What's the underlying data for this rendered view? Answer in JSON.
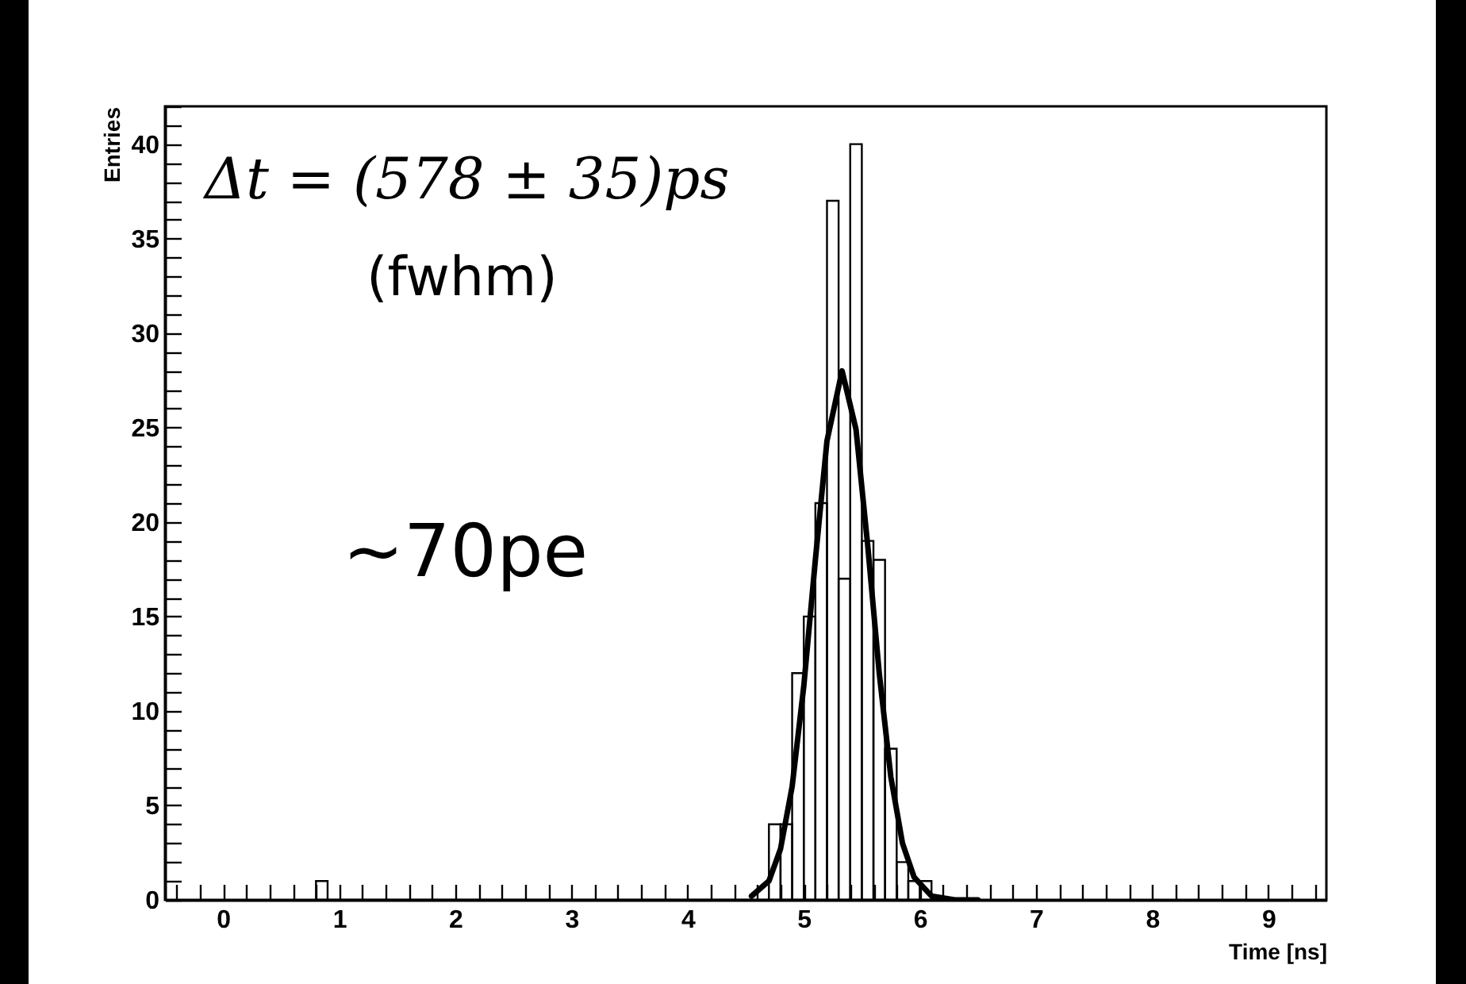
{
  "chart_data": {
    "type": "histogram",
    "xlabel": "Time [ns]",
    "ylabel": "Entries",
    "color": "#000000",
    "bins": [
      0.8,
      0.9,
      1.0,
      1.1,
      1.2,
      1.3,
      1.4,
      1.5,
      1.6,
      1.7,
      1.8,
      1.9,
      2.0,
      2.1,
      2.2,
      2.3,
      2.4,
      2.5,
      2.6,
      2.7,
      2.8,
      2.9,
      3.0,
      3.1,
      3.2,
      3.3,
      3.4,
      3.5,
      3.6,
      3.7,
      3.8,
      3.9,
      4.0,
      4.1,
      4.2,
      4.3,
      4.4,
      4.5,
      4.6,
      4.7,
      4.8,
      4.9,
      5.0,
      5.1,
      5.2,
      5.3,
      5.4,
      5.5,
      5.6,
      5.7,
      5.8,
      5.9,
      6.0,
      6.1
    ],
    "values": [
      1,
      0,
      0,
      0,
      0,
      0,
      0,
      0,
      0,
      0,
      0,
      0,
      0,
      0,
      0,
      0,
      0,
      0,
      0,
      0,
      0,
      0,
      0,
      0,
      0,
      0,
      0,
      0,
      0,
      0,
      0,
      0,
      0,
      0,
      0,
      0,
      0,
      0,
      0,
      4,
      4,
      12,
      15,
      21,
      37,
      17,
      40,
      19,
      18,
      8,
      2,
      1,
      1
    ],
    "series": [
      {
        "type": "line",
        "color": "#000000",
        "x": [
          4.55,
          4.7,
          4.8,
          4.9,
          5.0,
          5.1,
          5.2,
          5.33,
          5.45,
          5.55,
          5.65,
          5.75,
          5.85,
          5.95,
          6.1,
          6.3,
          6.5
        ],
        "values": [
          0.2,
          1.0,
          2.7,
          6.0,
          11.3,
          18.0,
          24.3,
          28.0,
          24.9,
          18.8,
          12.0,
          6.5,
          3.0,
          1.2,
          0.2,
          0,
          0
        ]
      }
    ],
    "xlim": [
      -0.5,
      9.5
    ],
    "xticks": [
      {
        "value": -0.4,
        "label": null
      },
      {
        "value": -0.2,
        "label": null
      },
      0,
      {
        "value": 0.2,
        "label": null
      },
      {
        "value": 0.4,
        "label": null
      },
      {
        "value": 0.6,
        "label": null
      },
      {
        "value": 0.8,
        "label": null
      },
      1,
      {
        "value": 1.2,
        "label": null
      },
      {
        "value": 1.4,
        "label": null
      },
      {
        "value": 1.6,
        "label": null
      },
      {
        "value": 1.8,
        "label": null
      },
      2,
      {
        "value": 2.2,
        "label": null
      },
      {
        "value": 2.4,
        "label": null
      },
      {
        "value": 2.6,
        "label": null
      },
      {
        "value": 2.8,
        "label": null
      },
      3,
      {
        "value": 3.2,
        "label": null
      },
      {
        "value": 3.4,
        "label": null
      },
      {
        "value": 3.6,
        "label": null
      },
      {
        "value": 3.8,
        "label": null
      },
      4,
      {
        "value": 4.2,
        "label": null
      },
      {
        "value": 4.4,
        "label": null
      },
      {
        "value": 4.6,
        "label": null
      },
      {
        "value": 4.8,
        "label": null
      },
      5,
      {
        "value": 5.2,
        "label": null
      },
      {
        "value": 5.4,
        "label": null
      },
      {
        "value": 5.6,
        "label": null
      },
      {
        "value": 5.8,
        "label": null
      },
      6,
      {
        "value": 6.2,
        "label": null
      },
      {
        "value": 6.4,
        "label": null
      },
      {
        "value": 6.6,
        "label": null
      },
      {
        "value": 6.8,
        "label": null
      },
      7,
      {
        "value": 7.2,
        "label": null
      },
      {
        "value": 7.4,
        "label": null
      },
      {
        "value": 7.6,
        "label": null
      },
      {
        "value": 7.8,
        "label": null
      },
      8,
      {
        "value": 8.2,
        "label": null
      },
      {
        "value": 8.4,
        "label": null
      },
      {
        "value": 8.6,
        "label": null
      },
      {
        "value": 8.8,
        "label": null
      },
      9,
      {
        "value": 9.2,
        "label": null
      },
      {
        "value": 9.4,
        "label": null
      }
    ],
    "ylim": [
      0,
      42
    ],
    "yticks": [
      0,
      {
        "value": 1,
        "label": null
      },
      {
        "value": 2,
        "label": null
      },
      {
        "value": 3,
        "label": null
      },
      {
        "value": 4,
        "label": null
      },
      5,
      {
        "value": 6,
        "label": null
      },
      {
        "value": 7,
        "label": null
      },
      {
        "value": 8,
        "label": null
      },
      {
        "value": 9,
        "label": null
      },
      10,
      {
        "value": 11,
        "label": null
      },
      {
        "value": 12,
        "label": null
      },
      {
        "value": 13,
        "label": null
      },
      {
        "value": 14,
        "label": null
      },
      15,
      {
        "value": 16,
        "label": null
      },
      {
        "value": 17,
        "label": null
      },
      {
        "value": 18,
        "label": null
      },
      {
        "value": 19,
        "label": null
      },
      20,
      {
        "value": 21,
        "label": null
      },
      {
        "value": 22,
        "label": null
      },
      {
        "value": 23,
        "label": null
      },
      {
        "value": 24,
        "label": null
      },
      25,
      {
        "value": 26,
        "label": null
      },
      {
        "value": 27,
        "label": null
      },
      {
        "value": 28,
        "label": null
      },
      {
        "value": 29,
        "label": null
      },
      30,
      {
        "value": 31,
        "label": null
      },
      {
        "value": 32,
        "label": null
      },
      {
        "value": 33,
        "label": null
      },
      {
        "value": 34,
        "label": null
      },
      35,
      {
        "value": 36,
        "label": null
      },
      {
        "value": 37,
        "label": null
      },
      {
        "value": 38,
        "label": null
      },
      {
        "value": 39,
        "label": null
      },
      40,
      {
        "value": 41,
        "label": null
      },
      {
        "value": 42,
        "label": null
      }
    ],
    "grid": false,
    "annotations": [
      "Δt = (578 ± 35)ps",
      "(fwhm)",
      "~70pe"
    ]
  }
}
